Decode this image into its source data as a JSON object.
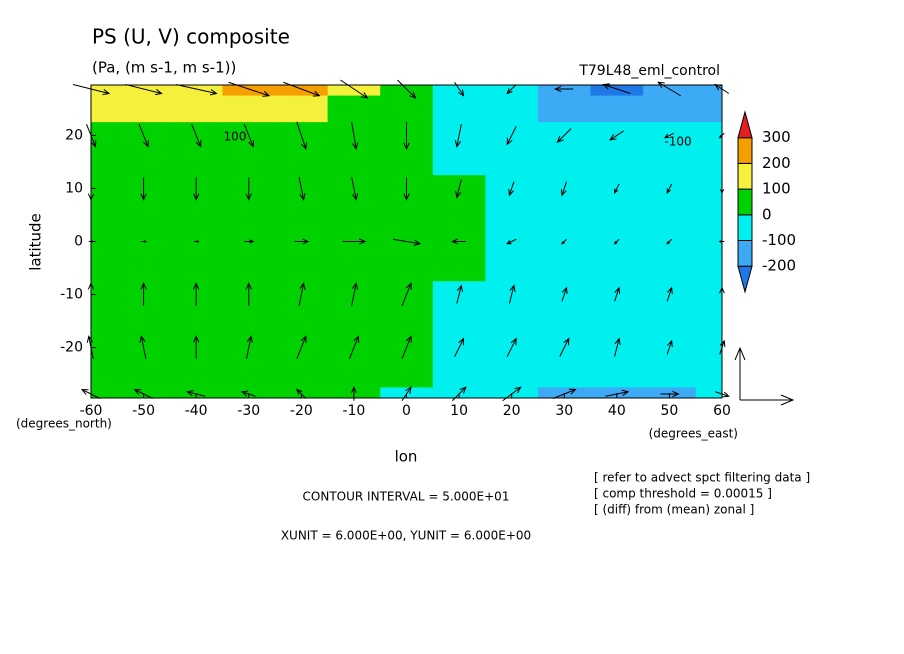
{
  "chart_data": {
    "type": "contour",
    "title": "PS (U, V) composite",
    "subtitle": "(Pa, (m s-1, m s-1))",
    "run_label": "T79L48_eml_control",
    "xlabel": "lon",
    "ylabel": "latitude",
    "x_units": "(degrees_east)",
    "y_units": "(degrees_north)",
    "contour_interval": "CONTOUR INTERVAL = 5.000E+01",
    "vector_units": "XUNIT = 6.000E+00, YUNIT = 6.000E+00",
    "notes": [
      "[ refer to advect spct filtering data ]",
      "[ comp threshold = 0.00015 ]",
      "[ (diff) from (mean) zonal ]"
    ],
    "xlim": [
      -60,
      60
    ],
    "ylim": [
      -29.5,
      29.5
    ],
    "xticks": [
      -60,
      -50,
      -40,
      -30,
      -20,
      -10,
      0,
      10,
      20,
      30,
      40,
      50,
      60
    ],
    "yticks": [
      -20,
      -10,
      0,
      10,
      20
    ],
    "levels": [
      -200,
      -100,
      0,
      100,
      200,
      300
    ],
    "colors": [
      "#1e78e6",
      "#3caaf5",
      "#00f0f0",
      "#00d200",
      "#f5f03c",
      "#f5a000",
      "#e61e1e"
    ],
    "contour_labels": [
      100,
      -100
    ],
    "lon": [
      -60,
      -50,
      -40,
      -30,
      -20,
      -10,
      0,
      10,
      20,
      30,
      40,
      50,
      60
    ],
    "lat": [
      30,
      25,
      20,
      15,
      10,
      5,
      0,
      -5,
      -10,
      -15,
      -20,
      -25,
      -30
    ],
    "z": [
      [
        150,
        160,
        190,
        220,
        210,
        130,
        60,
        -40,
        -90,
        -150,
        -210,
        -190,
        -150
      ],
      [
        110,
        115,
        130,
        150,
        130,
        90,
        50,
        -30,
        -80,
        -120,
        -150,
        -140,
        -110
      ],
      [
        80,
        80,
        85,
        90,
        80,
        60,
        40,
        -20,
        -60,
        -80,
        -90,
        -80,
        -70
      ],
      [
        60,
        60,
        60,
        60,
        55,
        45,
        30,
        -10,
        -40,
        -50,
        -50,
        -50,
        -50
      ],
      [
        50,
        50,
        50,
        50,
        50,
        40,
        30,
        10,
        -30,
        -40,
        -40,
        -40,
        -40
      ],
      [
        40,
        40,
        40,
        40,
        40,
        40,
        40,
        20,
        -20,
        -30,
        -30,
        -30,
        -30
      ],
      [
        40,
        40,
        40,
        40,
        40,
        50,
        60,
        30,
        -20,
        -30,
        -30,
        -30,
        -30
      ],
      [
        40,
        40,
        40,
        40,
        40,
        40,
        40,
        20,
        -20,
        -30,
        -30,
        -30,
        -30
      ],
      [
        40,
        40,
        40,
        40,
        40,
        40,
        30,
        -10,
        -30,
        -40,
        -40,
        -40,
        -40
      ],
      [
        50,
        50,
        50,
        50,
        50,
        40,
        20,
        -20,
        -40,
        -50,
        -50,
        -50,
        -50
      ],
      [
        60,
        60,
        60,
        70,
        70,
        50,
        20,
        -30,
        -50,
        -60,
        -70,
        -70,
        -60
      ],
      [
        60,
        60,
        70,
        80,
        80,
        60,
        10,
        -40,
        -70,
        -90,
        -100,
        -100,
        -80
      ],
      [
        70,
        70,
        80,
        90,
        90,
        60,
        -10,
        -50,
        -90,
        -130,
        -160,
        -140,
        -100
      ]
    ],
    "vector_lat": [
      30,
      20,
      10,
      0,
      -10,
      -20,
      -30
    ],
    "u": [
      [
        8,
        8,
        9,
        9,
        8,
        6,
        4,
        2,
        -2,
        -4,
        -6,
        -5,
        -3
      ],
      [
        2,
        2,
        2,
        2,
        2,
        1,
        0,
        -1,
        -2,
        -3,
        -3,
        -2,
        -1
      ],
      [
        0,
        0,
        0,
        0,
        1,
        1,
        0,
        -1,
        -1,
        -1,
        -1,
        -1,
        0
      ],
      [
        1,
        1,
        1,
        2,
        3,
        5,
        6,
        -3,
        -2,
        -1,
        -1,
        -1,
        -1
      ],
      [
        0,
        0,
        0,
        0,
        1,
        1,
        2,
        1,
        1,
        1,
        1,
        1,
        0
      ],
      [
        -1,
        -1,
        0,
        1,
        2,
        2,
        2,
        2,
        2,
        2,
        1,
        1,
        1
      ],
      [
        -4,
        -4,
        -4,
        -3,
        -2,
        0,
        2,
        3,
        4,
        5,
        5,
        4,
        3
      ]
    ],
    "v": [
      [
        -2,
        -2,
        -2,
        -3,
        -3,
        -4,
        -4,
        -3,
        -2,
        0,
        2,
        3,
        2
      ],
      [
        -5,
        -5,
        -5,
        -5,
        -6,
        -6,
        -6,
        -5,
        -4,
        -3,
        -2,
        -1,
        -1
      ],
      [
        -5,
        -5,
        -5,
        -5,
        -5,
        -5,
        -5,
        -4,
        -3,
        -3,
        -2,
        -2,
        -2
      ],
      [
        0,
        0,
        0,
        0,
        0,
        0,
        -1,
        0,
        -1,
        -1,
        -1,
        -1,
        0
      ],
      [
        5,
        5,
        5,
        5,
        5,
        5,
        5,
        4,
        4,
        3,
        3,
        3,
        3
      ],
      [
        5,
        5,
        5,
        5,
        5,
        5,
        5,
        4,
        4,
        4,
        4,
        3,
        3
      ],
      [
        2,
        2,
        1,
        1,
        2,
        3,
        3,
        3,
        3,
        2,
        1,
        0,
        -1
      ]
    ]
  }
}
